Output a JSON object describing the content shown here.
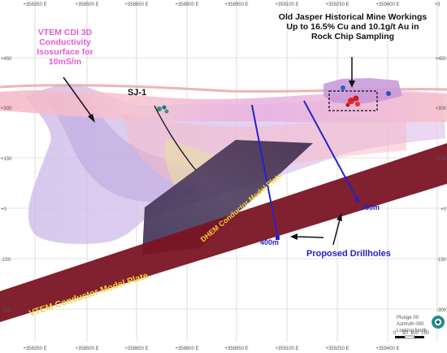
{
  "annotations": {
    "vtem_cdi": [
      "VTEM CDI 3D",
      "Conductivity",
      "Isosurface for",
      "10mS/m"
    ],
    "old_jasper": [
      "Old Jasper Historical Mine Workings",
      "Up to 16.5% Cu and 10.1g/t Au in",
      "Rock Chip Sampling"
    ],
    "sj1": "SJ-1",
    "dhem_plate": "DHEM Conductor Model Plate",
    "vtem_plate": "VTEM Conductor Model Plate",
    "proposed_drillholes": "Proposed Drillholes",
    "hole_400": "400m",
    "hole_350": "350m"
  },
  "axes": {
    "easting_labels": [
      "+358350 E",
      "+358500 E",
      "+358650 E",
      "+358800 E",
      "+358950 E",
      "+359100 E",
      "+359250 E",
      "+359400 E"
    ],
    "elevation_labels": [
      "+450",
      "+300",
      "+150",
      "+0",
      "-150",
      "-300"
    ],
    "top_edge_labels": [
      "+358350 E",
      "+358500 E",
      "+358650 E",
      "+358800 E",
      "+358950 E",
      "+359100 E",
      "+359250 E",
      "+359400 E",
      "+3"
    ],
    "right_edge_labels": [
      "+450",
      "+300",
      "+150",
      "+0",
      "-150",
      "-300"
    ]
  },
  "view": {
    "plunge": "Plunge 00",
    "azimuth": "Azimuth 000",
    "looking": "Looking North"
  },
  "scale_bar": {
    "ticks": [
      "0",
      "50",
      "100",
      "150"
    ]
  },
  "colors": {
    "annotation_magenta": "#e35bd6",
    "drillhole_blue": "#2323c8",
    "plate_maroon": "#7a1424",
    "plate_label": "#f4d03a"
  }
}
